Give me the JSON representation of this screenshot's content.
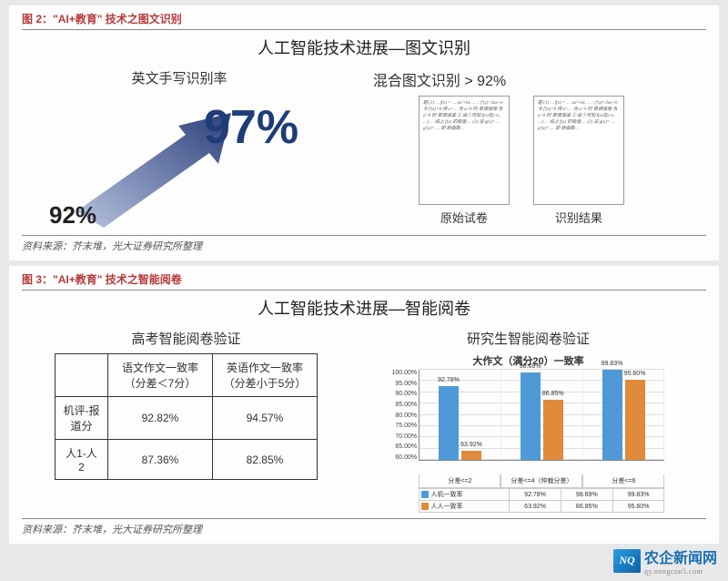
{
  "fig2": {
    "caption": "图 2：\"AI+教育\" 技术之图文识别",
    "title": "人工智能技术进展—图文识别",
    "left": {
      "subtitle": "英文手写识别率",
      "from_pct": "92%",
      "to_pct": "97%",
      "arrow_color": "#2b3f7a",
      "pct_color": "#1e3c78"
    },
    "right": {
      "subtitle": "混合图文识别 > 92%",
      "sheet1_label": "原始试卷",
      "sheet2_label": "识别结果",
      "sheet_text": "题  (1) … f(x) = … ax²+bx  …  ∴ f'(x)=2ax+b  令 f'(x)=0 得 x=…  当 a>0 时 单调递增  当 a<0 时 单调递减  ② 由①可知 f(x)在(-∞, …) …  综上 f(x) 的极值 …  (2) 设 g(x)= …  g'(x)= …  即 原函数…"
    },
    "source": "资料来源：芥末堆，光大证券研究所整理"
  },
  "fig3": {
    "caption": "图 3：\"AI+教育\" 技术之智能阅卷",
    "title": "人工智能技术进展—智能阅卷",
    "left": {
      "subtitle": "高考智能阅卷验证",
      "table": {
        "col_headers": [
          "",
          "语文作文一致率（分差＜7分）",
          "英语作文一致率（分差小于5分）"
        ],
        "rows": [
          [
            "机评-报道分",
            "92.82%",
            "94.57%"
          ],
          [
            "人1-人2",
            "87.36%",
            "82.85%"
          ]
        ]
      }
    },
    "right": {
      "subtitle": "研究生智能阅卷验证",
      "chart": {
        "title": "大作文（满分20）一致率",
        "y_min": 60,
        "y_max": 100,
        "y_step": 5,
        "y_ticks": [
          "100.00%",
          "95.00%",
          "90.00%",
          "85.00%",
          "80.00%",
          "75.00%",
          "70.00%",
          "65.00%",
          "60.00%"
        ],
        "categories": [
          "分差<=2",
          "分差<=4（仲裁分差）",
          "分差<=6"
        ],
        "series": [
          {
            "name": "人机一致率",
            "color": "#4f9ad6",
            "values": [
              92.78,
              98.69,
              99.83
            ],
            "labels": [
              "92.78%",
              "98.69%",
              "99.83%"
            ]
          },
          {
            "name": "人人一致率",
            "color": "#e08a3a",
            "values": [
              63.92,
              86.85,
              95.6
            ],
            "labels": [
              "63.92%",
              "86.85%",
              "95.60%"
            ]
          }
        ],
        "grid_color": "#dddddd",
        "border_color": "#888888",
        "background": "#ffffff"
      }
    },
    "source": "资料来源：芥末堆，光大证券研究所整理"
  },
  "watermark": {
    "logo_text": "NQ",
    "main": "农企新闻网",
    "sub": "qy.nongcun5.com"
  }
}
